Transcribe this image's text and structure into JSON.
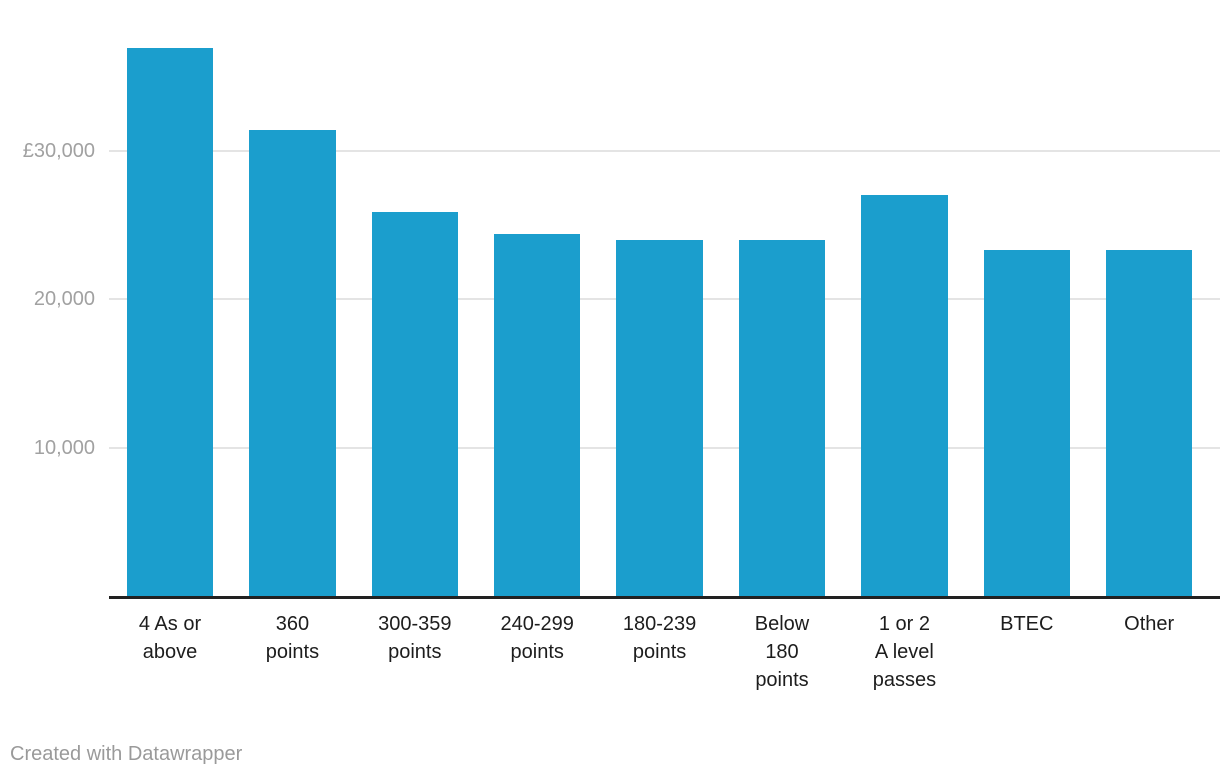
{
  "chart_data": {
    "type": "bar",
    "categories": [
      "4 As or above",
      "360 points",
      "300-359 points",
      "240-299 points",
      "180-239 points",
      "Below 180 points",
      "1 or 2 A level passes",
      "BTEC",
      "Other"
    ],
    "category_label_lines": [
      "4 As or\nabove",
      "360\npoints",
      "300-359\npoints",
      "240-299\npoints",
      "180-239\npoints",
      "Below\n180\npoints",
      "1 or 2\nA level\npasses",
      "BTEC",
      "Other"
    ],
    "values": [
      36900,
      31400,
      25900,
      24400,
      24000,
      24000,
      27000,
      23300,
      23300
    ],
    "currency_prefix": "£",
    "y_ticks": [
      {
        "value": 30000,
        "label": "£30,000"
      },
      {
        "value": 20000,
        "label": "20,000"
      },
      {
        "value": 10000,
        "label": "10,000"
      }
    ],
    "ylim": [
      0,
      40100
    ],
    "grid": true,
    "legend": "none",
    "title": "",
    "xlabel": "",
    "ylabel": ""
  },
  "footer": {
    "credit": "Created with Datawrapper"
  },
  "colors": {
    "bar": "#1b9ecd",
    "gridline": "#e4e4e4",
    "axis_line": "#212121",
    "y_tick_label": "#a1a1a1",
    "x_tick_label": "#1d1d1d",
    "credit_text": "#9a9a9a",
    "background": "#ffffff"
  }
}
